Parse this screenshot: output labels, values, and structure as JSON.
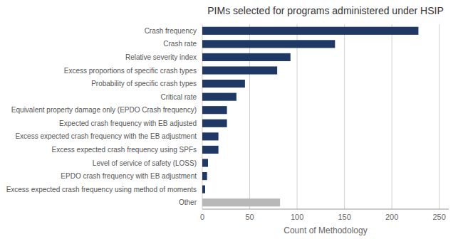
{
  "chart_data": {
    "type": "bar",
    "orientation": "horizontal",
    "title": "PIMs selected for programs administered under HSIP",
    "xlabel": "Count of Methodology",
    "categories": [
      "Crash frequency",
      "Crash rate",
      "Relative severity index",
      "Excess proportions of specific crash types",
      "Probability of specific crash types",
      "Critical rate",
      "Equivalent property damage only (EPDO Crash frequency)",
      "Expected crash frequency with EB adjusted",
      "Excess expected crash frequency with the EB adjustment",
      "Excess expected crash frequency using SPFs",
      "Level of service of safety (LOSS)",
      "EPDO crash frequency with EB adjustment",
      "Excess expected crash frequency using method of moments",
      "Other"
    ],
    "values": [
      228,
      140,
      93,
      79,
      45,
      36,
      26,
      26,
      17,
      17,
      6,
      5,
      3,
      82
    ],
    "colors": [
      "#1f3864",
      "#1f3864",
      "#1f3864",
      "#1f3864",
      "#1f3864",
      "#1f3864",
      "#1f3864",
      "#1f3864",
      "#1f3864",
      "#1f3864",
      "#1f3864",
      "#1f3864",
      "#1f3864",
      "#b8b8b8"
    ],
    "xlim": [
      0,
      260
    ],
    "xticks": [
      0,
      50,
      100,
      150,
      200,
      250
    ],
    "grid": true
  }
}
